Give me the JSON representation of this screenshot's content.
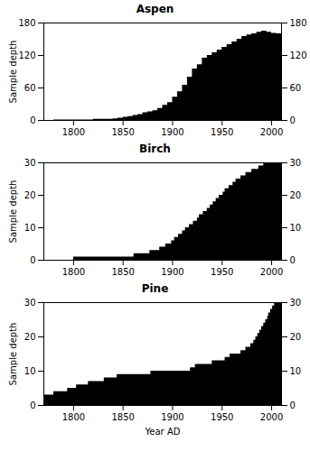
{
  "chart_data": [
    {
      "type": "area",
      "title": "Aspen",
      "ylabel": "Sample depth",
      "color": "#000000",
      "line_style": "step",
      "xlim": [
        1770,
        2010
      ],
      "xticks": [
        1800,
        1850,
        1900,
        1950,
        2000
      ],
      "ylim": [
        0,
        180
      ],
      "yticks": [
        0,
        60,
        120,
        180
      ],
      "x": [
        1770,
        1771,
        1772,
        1773,
        1774,
        1775,
        1776,
        1777,
        1778,
        1779,
        1780,
        1781,
        1782,
        1783,
        1784,
        1785,
        1786,
        1787,
        1788,
        1789,
        1790,
        1791,
        1792,
        1793,
        1794,
        1795,
        1796,
        1797,
        1798,
        1799,
        1800,
        1801,
        1802,
        1803,
        1804,
        1805,
        1806,
        1807,
        1808,
        1809,
        1810,
        1811,
        1812,
        1813,
        1814,
        1815,
        1816,
        1817,
        1818,
        1819,
        1820,
        1821,
        1822,
        1823,
        1824,
        1825,
        1826,
        1827,
        1828,
        1829,
        1830,
        1831,
        1832,
        1833,
        1834,
        1835,
        1836,
        1837,
        1838,
        1839,
        1840,
        1841,
        1842,
        1843,
        1844,
        1845,
        1846,
        1847,
        1848,
        1849,
        1850,
        1851,
        1852,
        1853,
        1854,
        1855,
        1856,
        1857,
        1858,
        1859,
        1860,
        1861,
        1862,
        1863,
        1864,
        1865,
        1866,
        1867,
        1868,
        1869,
        1870,
        1871,
        1872,
        1873,
        1874,
        1875,
        1876,
        1877,
        1878,
        1879,
        1880,
        1881,
        1882,
        1883,
        1884,
        1885,
        1886,
        1887,
        1888,
        1889,
        1890,
        1891,
        1892,
        1893,
        1894,
        1895,
        1896,
        1897,
        1898,
        1899,
        1900,
        1901,
        1902,
        1903,
        1904,
        1905,
        1906,
        1907,
        1908,
        1909,
        1910,
        1911,
        1912,
        1913,
        1914,
        1915,
        1916,
        1917,
        1918,
        1919,
        1920,
        1921,
        1922,
        1923,
        1924,
        1925,
        1926,
        1927,
        1928,
        1929,
        1930,
        1931,
        1932,
        1933,
        1934,
        1935,
        1936,
        1937,
        1938,
        1939,
        1940,
        1941,
        1942,
        1943,
        1944,
        1945,
        1946,
        1947,
        1948,
        1949,
        1950,
        1951,
        1952,
        1953,
        1954,
        1955,
        1956,
        1957,
        1958,
        1959,
        1960,
        1961,
        1962,
        1963,
        1964,
        1965,
        1966,
        1967,
        1968,
        1969,
        1970,
        1971,
        1972,
        1973,
        1974,
        1975,
        1976,
        1977,
        1978,
        1979,
        1980,
        1981,
        1982,
        1983,
        1984,
        1985,
        1986,
        1987,
        1988,
        1989,
        1990,
        1991,
        1992,
        1993,
        1994,
        1995,
        1996,
        1997,
        1998,
        1999,
        2000,
        2001,
        2002,
        2003,
        2004,
        2005,
        2006,
        2007,
        2008,
        2009,
        2010
      ],
      "values": [
        0,
        0,
        0,
        0,
        0,
        0,
        0,
        0,
        0,
        0,
        1,
        1,
        1,
        1,
        1,
        1,
        1,
        1,
        1,
        1,
        1,
        1,
        1,
        1,
        1,
        1,
        1,
        1,
        1,
        1,
        1,
        1,
        1,
        1,
        1,
        1,
        1,
        1,
        1,
        1,
        1,
        1,
        1,
        1,
        1,
        1,
        1,
        1,
        1,
        1,
        2,
        2,
        2,
        2,
        2,
        2,
        2,
        2,
        2,
        2,
        2,
        2,
        2,
        2,
        2,
        2,
        2,
        2,
        2,
        2,
        3,
        3,
        3,
        3,
        3,
        4,
        4,
        4,
        4,
        4,
        6,
        6,
        6,
        6,
        6,
        7,
        7,
        7,
        7,
        7,
        9,
        9,
        9,
        9,
        9,
        11,
        11,
        11,
        11,
        11,
        14,
        14,
        14,
        14,
        14,
        16,
        16,
        16,
        16,
        16,
        18,
        18,
        18,
        18,
        18,
        22,
        22,
        22,
        22,
        22,
        28,
        28,
        28,
        28,
        28,
        33,
        33,
        33,
        33,
        33,
        43,
        43,
        43,
        43,
        43,
        53,
        53,
        53,
        53,
        53,
        65,
        65,
        65,
        65,
        65,
        80,
        80,
        80,
        80,
        80,
        95,
        95,
        95,
        95,
        95,
        103,
        103,
        103,
        103,
        103,
        115,
        115,
        115,
        115,
        115,
        120,
        120,
        120,
        120,
        120,
        125,
        125,
        125,
        125,
        125,
        130,
        130,
        130,
        130,
        130,
        135,
        135,
        135,
        135,
        135,
        140,
        140,
        140,
        140,
        140,
        145,
        145,
        145,
        145,
        145,
        150,
        150,
        150,
        150,
        150,
        155,
        155,
        155,
        155,
        155,
        158,
        158,
        158,
        158,
        158,
        160,
        160,
        160,
        160,
        160,
        163,
        163,
        163,
        163,
        163,
        165,
        165,
        165,
        165,
        165,
        163,
        163,
        163,
        163,
        163,
        161,
        161,
        161,
        161,
        161,
        160,
        160,
        160,
        160,
        160,
        160
      ]
    },
    {
      "type": "area",
      "title": "Birch",
      "ylabel": "Sample depth",
      "color": "#000000",
      "line_style": "step",
      "xlim": [
        1770,
        2010
      ],
      "xticks": [
        1800,
        1850,
        1900,
        1950,
        2000
      ],
      "ylim": [
        0,
        30
      ],
      "yticks": [
        0,
        10,
        20,
        30
      ],
      "x": [
        1770,
        1771,
        1772,
        1773,
        1774,
        1775,
        1776,
        1777,
        1778,
        1779,
        1780,
        1781,
        1782,
        1783,
        1784,
        1785,
        1786,
        1787,
        1788,
        1789,
        1790,
        1791,
        1792,
        1793,
        1794,
        1795,
        1796,
        1797,
        1798,
        1799,
        1800,
        1801,
        1802,
        1803,
        1804,
        1805,
        1806,
        1807,
        1808,
        1809,
        1810,
        1811,
        1812,
        1813,
        1814,
        1815,
        1816,
        1817,
        1818,
        1819,
        1820,
        1821,
        1822,
        1823,
        1824,
        1825,
        1826,
        1827,
        1828,
        1829,
        1830,
        1831,
        1832,
        1833,
        1834,
        1835,
        1836,
        1837,
        1838,
        1839,
        1840,
        1841,
        1842,
        1843,
        1844,
        1845,
        1846,
        1847,
        1848,
        1849,
        1850,
        1851,
        1852,
        1853,
        1854,
        1855,
        1856,
        1857,
        1858,
        1859,
        1860,
        1861,
        1862,
        1863,
        1864,
        1865,
        1866,
        1867,
        1868,
        1869,
        1870,
        1871,
        1872,
        1873,
        1874,
        1875,
        1876,
        1877,
        1878,
        1879,
        1880,
        1881,
        1882,
        1883,
        1884,
        1885,
        1886,
        1887,
        1888,
        1889,
        1890,
        1891,
        1892,
        1893,
        1894,
        1895,
        1896,
        1897,
        1898,
        1899,
        1900,
        1901,
        1902,
        1903,
        1904,
        1905,
        1906,
        1907,
        1908,
        1909,
        1910,
        1911,
        1912,
        1913,
        1914,
        1915,
        1916,
        1917,
        1918,
        1919,
        1920,
        1921,
        1922,
        1923,
        1924,
        1925,
        1926,
        1927,
        1928,
        1929,
        1930,
        1931,
        1932,
        1933,
        1934,
        1935,
        1936,
        1937,
        1938,
        1939,
        1940,
        1941,
        1942,
        1943,
        1944,
        1945,
        1946,
        1947,
        1948,
        1949,
        1950,
        1951,
        1952,
        1953,
        1954,
        1955,
        1956,
        1957,
        1958,
        1959,
        1960,
        1961,
        1962,
        1963,
        1964,
        1965,
        1966,
        1967,
        1968,
        1969,
        1970,
        1971,
        1972,
        1973,
        1974,
        1975,
        1976,
        1977,
        1978,
        1979,
        1980,
        1981,
        1982,
        1983,
        1984,
        1985,
        1986,
        1987,
        1988,
        1989,
        1990,
        1991,
        1992,
        1993,
        1994,
        1995,
        1996,
        1997,
        1998,
        1999,
        2000,
        2001,
        2002,
        2003,
        2004,
        2005,
        2006,
        2007,
        2008,
        2009,
        2010
      ],
      "values": [
        0,
        0,
        0,
        0,
        0,
        0,
        0,
        0,
        0,
        0,
        0,
        0,
        0,
        0,
        0,
        0,
        0,
        0,
        0,
        0,
        0,
        0,
        0,
        0,
        0,
        0,
        0,
        0,
        0,
        0,
        1,
        1,
        1,
        1,
        1,
        1,
        1,
        1,
        1,
        1,
        1,
        1,
        1,
        1,
        1,
        1,
        1,
        1,
        1,
        1,
        1,
        1,
        1,
        1,
        1,
        1,
        1,
        1,
        1,
        1,
        1,
        1,
        1,
        1,
        1,
        1,
        1,
        1,
        1,
        1,
        1,
        1,
        1,
        1,
        1,
        1,
        1,
        1,
        1,
        1,
        1,
        1,
        1,
        1,
        1,
        1,
        1,
        1,
        1,
        1,
        1,
        2,
        2,
        2,
        2,
        2,
        2,
        2,
        2,
        2,
        2,
        2,
        2,
        2,
        2,
        2,
        2,
        3,
        3,
        3,
        3,
        3,
        3,
        3,
        3,
        3,
        3,
        4,
        4,
        4,
        4,
        4,
        4,
        5,
        5,
        5,
        5,
        5,
        5,
        6,
        6,
        6,
        7,
        7,
        7,
        7,
        8,
        8,
        8,
        8,
        9,
        9,
        9,
        10,
        10,
        10,
        10,
        11,
        11,
        11,
        11,
        12,
        12,
        12,
        12,
        13,
        13,
        14,
        14,
        14,
        14,
        15,
        15,
        15,
        15,
        16,
        16,
        16,
        17,
        17,
        17,
        18,
        18,
        18,
        19,
        19,
        19,
        20,
        20,
        20,
        20,
        21,
        21,
        22,
        22,
        22,
        22,
        23,
        23,
        23,
        23,
        24,
        24,
        24,
        25,
        25,
        25,
        25,
        25,
        26,
        26,
        26,
        26,
        26,
        27,
        27,
        27,
        27,
        27,
        27,
        28,
        28,
        28,
        28,
        28,
        28,
        28,
        29,
        29,
        29,
        29,
        29,
        30,
        30,
        30,
        30,
        30,
        30,
        30,
        30,
        30,
        30,
        30,
        30,
        30,
        30,
        30,
        30,
        30,
        30,
        30
      ]
    },
    {
      "type": "area",
      "title": "Pine",
      "xlabel": "Year AD",
      "ylabel": "Sample depth",
      "color": "#000000",
      "line_style": "step",
      "xlim": [
        1770,
        2010
      ],
      "xticks": [
        1800,
        1850,
        1900,
        1950,
        2000
      ],
      "ylim": [
        0,
        30
      ],
      "yticks": [
        0,
        10,
        20,
        30
      ],
      "x": [
        1770,
        1771,
        1772,
        1773,
        1774,
        1775,
        1776,
        1777,
        1778,
        1779,
        1780,
        1781,
        1782,
        1783,
        1784,
        1785,
        1786,
        1787,
        1788,
        1789,
        1790,
        1791,
        1792,
        1793,
        1794,
        1795,
        1796,
        1797,
        1798,
        1799,
        1800,
        1801,
        1802,
        1803,
        1804,
        1805,
        1806,
        1807,
        1808,
        1809,
        1810,
        1811,
        1812,
        1813,
        1814,
        1815,
        1816,
        1817,
        1818,
        1819,
        1820,
        1821,
        1822,
        1823,
        1824,
        1825,
        1826,
        1827,
        1828,
        1829,
        1830,
        1831,
        1832,
        1833,
        1834,
        1835,
        1836,
        1837,
        1838,
        1839,
        1840,
        1841,
        1842,
        1843,
        1844,
        1845,
        1846,
        1847,
        1848,
        1849,
        1850,
        1851,
        1852,
        1853,
        1854,
        1855,
        1856,
        1857,
        1858,
        1859,
        1860,
        1861,
        1862,
        1863,
        1864,
        1865,
        1866,
        1867,
        1868,
        1869,
        1870,
        1871,
        1872,
        1873,
        1874,
        1875,
        1876,
        1877,
        1878,
        1879,
        1880,
        1881,
        1882,
        1883,
        1884,
        1885,
        1886,
        1887,
        1888,
        1889,
        1890,
        1891,
        1892,
        1893,
        1894,
        1895,
        1896,
        1897,
        1898,
        1899,
        1900,
        1901,
        1902,
        1903,
        1904,
        1905,
        1906,
        1907,
        1908,
        1909,
        1910,
        1911,
        1912,
        1913,
        1914,
        1915,
        1916,
        1917,
        1918,
        1919,
        1920,
        1921,
        1922,
        1923,
        1924,
        1925,
        1926,
        1927,
        1928,
        1929,
        1930,
        1931,
        1932,
        1933,
        1934,
        1935,
        1936,
        1937,
        1938,
        1939,
        1940,
        1941,
        1942,
        1943,
        1944,
        1945,
        1946,
        1947,
        1948,
        1949,
        1950,
        1951,
        1952,
        1953,
        1954,
        1955,
        1956,
        1957,
        1958,
        1959,
        1960,
        1961,
        1962,
        1963,
        1964,
        1965,
        1966,
        1967,
        1968,
        1969,
        1970,
        1971,
        1972,
        1973,
        1974,
        1975,
        1976,
        1977,
        1978,
        1979,
        1980,
        1981,
        1982,
        1983,
        1984,
        1985,
        1986,
        1987,
        1988,
        1989,
        1990,
        1991,
        1992,
        1993,
        1994,
        1995,
        1996,
        1997,
        1998,
        1999,
        2000,
        2001,
        2002,
        2003,
        2004,
        2005,
        2006,
        2007,
        2008,
        2009,
        2010
      ],
      "values": [
        3,
        3,
        3,
        3,
        3,
        3,
        3,
        3,
        3,
        3,
        4,
        4,
        4,
        4,
        4,
        4,
        4,
        4,
        4,
        4,
        4,
        4,
        4,
        4,
        5,
        5,
        5,
        5,
        5,
        5,
        5,
        5,
        5,
        6,
        6,
        6,
        6,
        6,
        6,
        6,
        6,
        6,
        6,
        6,
        6,
        7,
        7,
        7,
        7,
        7,
        7,
        7,
        7,
        7,
        7,
        7,
        7,
        7,
        7,
        7,
        7,
        8,
        8,
        8,
        8,
        8,
        8,
        8,
        8,
        8,
        8,
        8,
        8,
        8,
        9,
        9,
        9,
        9,
        9,
        9,
        9,
        9,
        9,
        9,
        9,
        9,
        9,
        9,
        9,
        9,
        9,
        9,
        9,
        9,
        9,
        9,
        9,
        9,
        9,
        9,
        9,
        9,
        9,
        9,
        9,
        9,
        9,
        9,
        10,
        10,
        10,
        10,
        10,
        10,
        10,
        10,
        10,
        10,
        10,
        10,
        10,
        10,
        10,
        10,
        10,
        10,
        10,
        10,
        10,
        10,
        10,
        10,
        10,
        10,
        10,
        10,
        10,
        10,
        10,
        10,
        10,
        10,
        10,
        10,
        10,
        10,
        10,
        10,
        11,
        11,
        11,
        11,
        11,
        12,
        12,
        12,
        12,
        12,
        12,
        12,
        12,
        12,
        12,
        12,
        12,
        12,
        12,
        12,
        12,
        12,
        13,
        13,
        13,
        13,
        13,
        13,
        13,
        13,
        13,
        13,
        13,
        13,
        13,
        14,
        14,
        14,
        14,
        14,
        15,
        15,
        15,
        15,
        15,
        15,
        15,
        15,
        15,
        15,
        15,
        16,
        16,
        16,
        16,
        16,
        17,
        17,
        17,
        17,
        17,
        18,
        18,
        18,
        19,
        19,
        20,
        20,
        21,
        21,
        22,
        22,
        23,
        23,
        24,
        24,
        25,
        25,
        26,
        27,
        27,
        28,
        28,
        29,
        29,
        30,
        30,
        30,
        30,
        30,
        30,
        30,
        30
      ]
    }
  ]
}
